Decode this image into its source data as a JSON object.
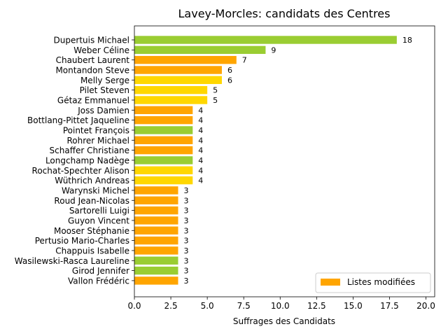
{
  "chart_data": {
    "type": "bar",
    "orientation": "horizontal",
    "title": "Lavey-Morcles: candidats des Centres",
    "xlabel": "Suffrages des Candidats",
    "ylabel": "",
    "xlim": [
      0,
      20.6
    ],
    "xticks": [
      "0.0",
      "2.5",
      "5.0",
      "7.5",
      "10.0",
      "12.5",
      "15.0",
      "17.5",
      "20.0"
    ],
    "grid": false,
    "legend": {
      "placement": "lower-right",
      "entries": [
        {
          "label": "Listes modifiées",
          "color": "#ffa500"
        }
      ]
    },
    "colors": {
      "green": "#9acd32",
      "orange": "#ffa500",
      "yellow": "#ffd700"
    },
    "bars": [
      {
        "label": "Dupertuis Michael",
        "value": 18,
        "color": "green"
      },
      {
        "label": "Weber Céline",
        "value": 9,
        "color": "green"
      },
      {
        "label": "Chaubert Laurent",
        "value": 7,
        "color": "orange"
      },
      {
        "label": "Montandon Steve",
        "value": 6,
        "color": "orange"
      },
      {
        "label": "Melly Serge",
        "value": 6,
        "color": "yellow"
      },
      {
        "label": "Pilet Steven",
        "value": 5,
        "color": "yellow"
      },
      {
        "label": "Gétaz Emmanuel",
        "value": 5,
        "color": "yellow"
      },
      {
        "label": "Joss Damien",
        "value": 4,
        "color": "orange"
      },
      {
        "label": "Bottlang-Pittet Jaqueline",
        "value": 4,
        "color": "orange"
      },
      {
        "label": "Pointet François",
        "value": 4,
        "color": "green"
      },
      {
        "label": "Rohrer Michael",
        "value": 4,
        "color": "orange"
      },
      {
        "label": "Schaffer Christiane",
        "value": 4,
        "color": "orange"
      },
      {
        "label": "Longchamp Nadège",
        "value": 4,
        "color": "green"
      },
      {
        "label": "Rochat-Spechter Alison",
        "value": 4,
        "color": "yellow"
      },
      {
        "label": "Wüthrich Andreas",
        "value": 4,
        "color": "yellow"
      },
      {
        "label": "Warynski Michel",
        "value": 3,
        "color": "orange"
      },
      {
        "label": "Roud Jean-Nicolas",
        "value": 3,
        "color": "orange"
      },
      {
        "label": "Sartorelli Luigi",
        "value": 3,
        "color": "orange"
      },
      {
        "label": "Guyon Vincent",
        "value": 3,
        "color": "orange"
      },
      {
        "label": "Mooser Stéphanie",
        "value": 3,
        "color": "orange"
      },
      {
        "label": "Pertusio Mario-Charles",
        "value": 3,
        "color": "orange"
      },
      {
        "label": "Chappuis Isabelle",
        "value": 3,
        "color": "orange"
      },
      {
        "label": "Wasilewski-Rasca Laureline",
        "value": 3,
        "color": "green"
      },
      {
        "label": "Girod Jennifer",
        "value": 3,
        "color": "green"
      },
      {
        "label": "Vallon Frédéric",
        "value": 3,
        "color": "orange"
      }
    ]
  }
}
